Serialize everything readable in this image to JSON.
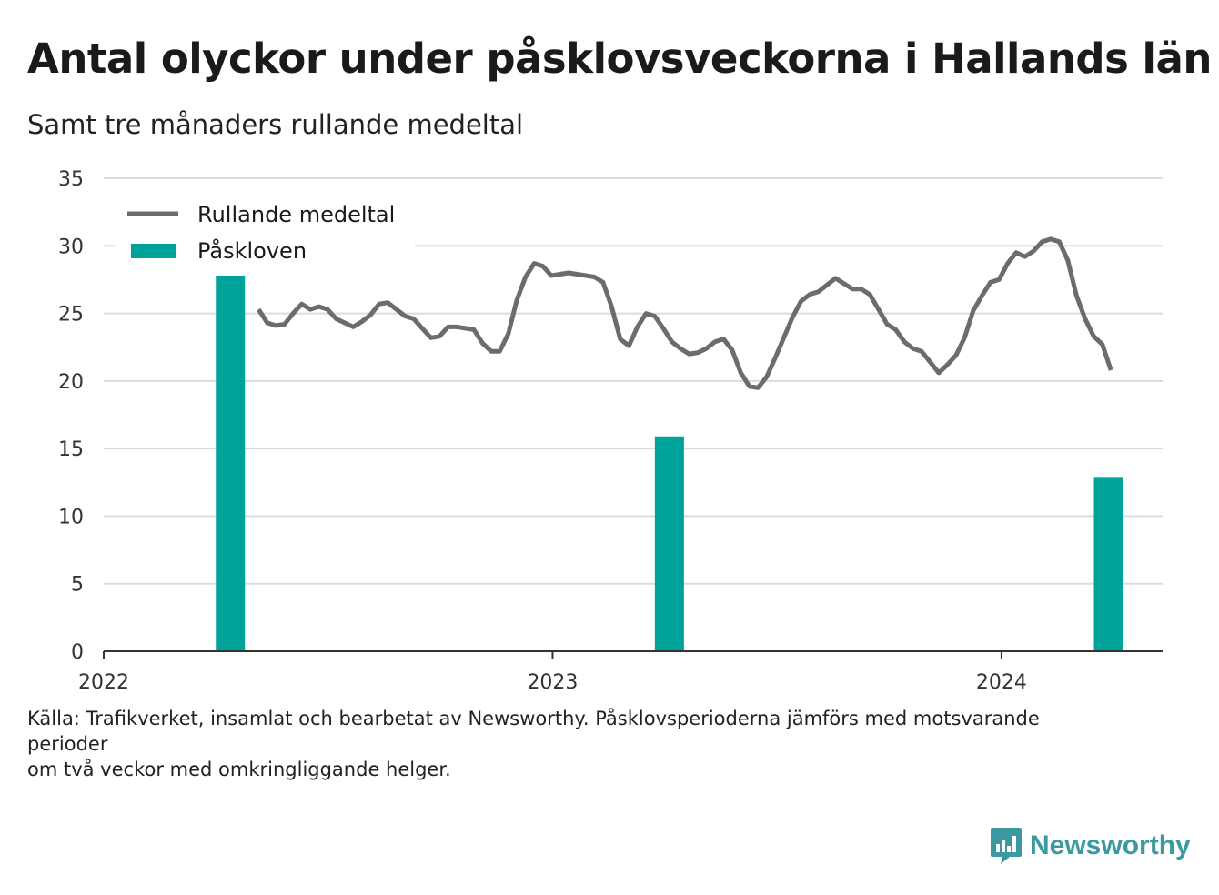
{
  "title": "Antal olyckor under påsklovsveckorna i Hallands län",
  "subtitle": "Samt tre månaders rullande medeltal",
  "source_lines": [
    "Källa: Trafikverket, insamlat och bearbetat av Newsworthy. Påsklovsperioderna jämförs med motsvarande",
    "perioder",
    "om två veckor med omkringliggande helger."
  ],
  "logo_text": "Newsworthy",
  "colors": {
    "line": "#6b6b70",
    "bar": "#00a39a",
    "grid": "#dcdcdc",
    "axis": "#333333",
    "logo": "#3a9aa0"
  },
  "chart_data": {
    "type": "line+bar",
    "title": "Antal olyckor under påsklovsveckorna i Hallands län",
    "subtitle": "Samt tre månaders rullande medeltal",
    "xlabel": "",
    "ylabel": "",
    "ylim": [
      0,
      35
    ],
    "yticks": [
      0,
      5,
      10,
      15,
      20,
      25,
      30,
      35
    ],
    "x_range": [
      "2022-01-01",
      "2024-05-11"
    ],
    "xticks": [
      {
        "date": "2022-01-01",
        "label": "2022"
      },
      {
        "date": "2023-01-01",
        "label": "2023"
      },
      {
        "date": "2024-01-01",
        "label": "2024"
      }
    ],
    "grid": true,
    "legend_position": "top-left",
    "legend": [
      {
        "name": "Rullande medeltal",
        "marker": "line"
      },
      {
        "name": "Påskloven",
        "marker": "bar"
      }
    ],
    "series": [
      {
        "name": "Rullande medeltal",
        "type": "line",
        "points": [
          [
            "2022-05-07",
            25.3
          ],
          [
            "2022-05-14",
            24.3
          ],
          [
            "2022-05-21",
            24.1
          ],
          [
            "2022-05-28",
            24.2
          ],
          [
            "2022-06-04",
            25.0
          ],
          [
            "2022-06-11",
            25.7
          ],
          [
            "2022-06-18",
            25.3
          ],
          [
            "2022-06-25",
            25.5
          ],
          [
            "2022-07-02",
            25.3
          ],
          [
            "2022-07-09",
            24.6
          ],
          [
            "2022-07-16",
            24.3
          ],
          [
            "2022-07-23",
            24.0
          ],
          [
            "2022-07-30",
            24.4
          ],
          [
            "2022-08-06",
            24.9
          ],
          [
            "2022-08-13",
            25.7
          ],
          [
            "2022-08-20",
            25.8
          ],
          [
            "2022-08-27",
            25.3
          ],
          [
            "2022-09-03",
            24.8
          ],
          [
            "2022-09-10",
            24.6
          ],
          [
            "2022-09-17",
            23.9
          ],
          [
            "2022-09-24",
            23.2
          ],
          [
            "2022-10-01",
            23.3
          ],
          [
            "2022-10-08",
            24.0
          ],
          [
            "2022-10-15",
            24.0
          ],
          [
            "2022-10-22",
            23.9
          ],
          [
            "2022-10-29",
            23.8
          ],
          [
            "2022-11-05",
            22.8
          ],
          [
            "2022-11-12",
            22.2
          ],
          [
            "2022-11-19",
            22.2
          ],
          [
            "2022-11-26",
            23.5
          ],
          [
            "2022-12-03",
            26.0
          ],
          [
            "2022-12-10",
            27.7
          ],
          [
            "2022-12-17",
            28.7
          ],
          [
            "2022-12-24",
            28.5
          ],
          [
            "2022-12-31",
            27.8
          ],
          [
            "2023-01-07",
            27.9
          ],
          [
            "2023-01-14",
            28.0
          ],
          [
            "2023-01-21",
            27.9
          ],
          [
            "2023-01-28",
            27.8
          ],
          [
            "2023-02-04",
            27.7
          ],
          [
            "2023-02-11",
            27.3
          ],
          [
            "2023-02-18",
            25.5
          ],
          [
            "2023-02-25",
            23.1
          ],
          [
            "2023-03-04",
            22.6
          ],
          [
            "2023-03-11",
            24.0
          ],
          [
            "2023-03-18",
            25.0
          ],
          [
            "2023-03-25",
            24.8
          ],
          [
            "2023-04-01",
            23.9
          ],
          [
            "2023-04-08",
            22.9
          ],
          [
            "2023-04-15",
            22.4
          ],
          [
            "2023-04-22",
            22.0
          ],
          [
            "2023-04-29",
            22.1
          ],
          [
            "2023-05-06",
            22.4
          ],
          [
            "2023-05-13",
            22.9
          ],
          [
            "2023-05-20",
            23.1
          ],
          [
            "2023-05-27",
            22.3
          ],
          [
            "2023-06-03",
            20.6
          ],
          [
            "2023-06-10",
            19.6
          ],
          [
            "2023-06-17",
            19.5
          ],
          [
            "2023-06-24",
            20.3
          ],
          [
            "2023-07-01",
            21.7
          ],
          [
            "2023-07-08",
            23.2
          ],
          [
            "2023-07-15",
            24.7
          ],
          [
            "2023-07-22",
            25.9
          ],
          [
            "2023-07-29",
            26.4
          ],
          [
            "2023-08-05",
            26.6
          ],
          [
            "2023-08-12",
            27.1
          ],
          [
            "2023-08-19",
            27.6
          ],
          [
            "2023-08-26",
            27.2
          ],
          [
            "2023-09-02",
            26.8
          ],
          [
            "2023-09-09",
            26.8
          ],
          [
            "2023-09-16",
            26.4
          ],
          [
            "2023-09-23",
            25.3
          ],
          [
            "2023-09-30",
            24.2
          ],
          [
            "2023-10-07",
            23.8
          ],
          [
            "2023-10-14",
            22.9
          ],
          [
            "2023-10-21",
            22.4
          ],
          [
            "2023-10-28",
            22.2
          ],
          [
            "2023-11-04",
            21.4
          ],
          [
            "2023-11-11",
            20.6
          ],
          [
            "2023-11-18",
            21.2
          ],
          [
            "2023-11-25",
            21.9
          ],
          [
            "2023-12-02",
            23.2
          ],
          [
            "2023-12-09",
            25.2
          ],
          [
            "2023-12-16",
            26.3
          ],
          [
            "2023-12-23",
            27.3
          ],
          [
            "2023-12-30",
            27.5
          ],
          [
            "2024-01-06",
            28.7
          ],
          [
            "2024-01-13",
            29.5
          ],
          [
            "2024-01-20",
            29.2
          ],
          [
            "2024-01-27",
            29.6
          ],
          [
            "2024-02-03",
            30.3
          ],
          [
            "2024-02-10",
            30.5
          ],
          [
            "2024-02-17",
            30.3
          ],
          [
            "2024-02-24",
            28.9
          ],
          [
            "2024-03-02",
            26.3
          ],
          [
            "2024-03-09",
            24.6
          ],
          [
            "2024-03-16",
            23.3
          ],
          [
            "2024-03-23",
            22.7
          ],
          [
            "2024-03-30",
            20.8
          ]
        ]
      },
      {
        "name": "Påskloven",
        "type": "bar",
        "points": [
          [
            "2022-04-14",
            27.8
          ],
          [
            "2023-04-06",
            15.9
          ],
          [
            "2024-03-28",
            12.9
          ]
        ]
      }
    ]
  }
}
